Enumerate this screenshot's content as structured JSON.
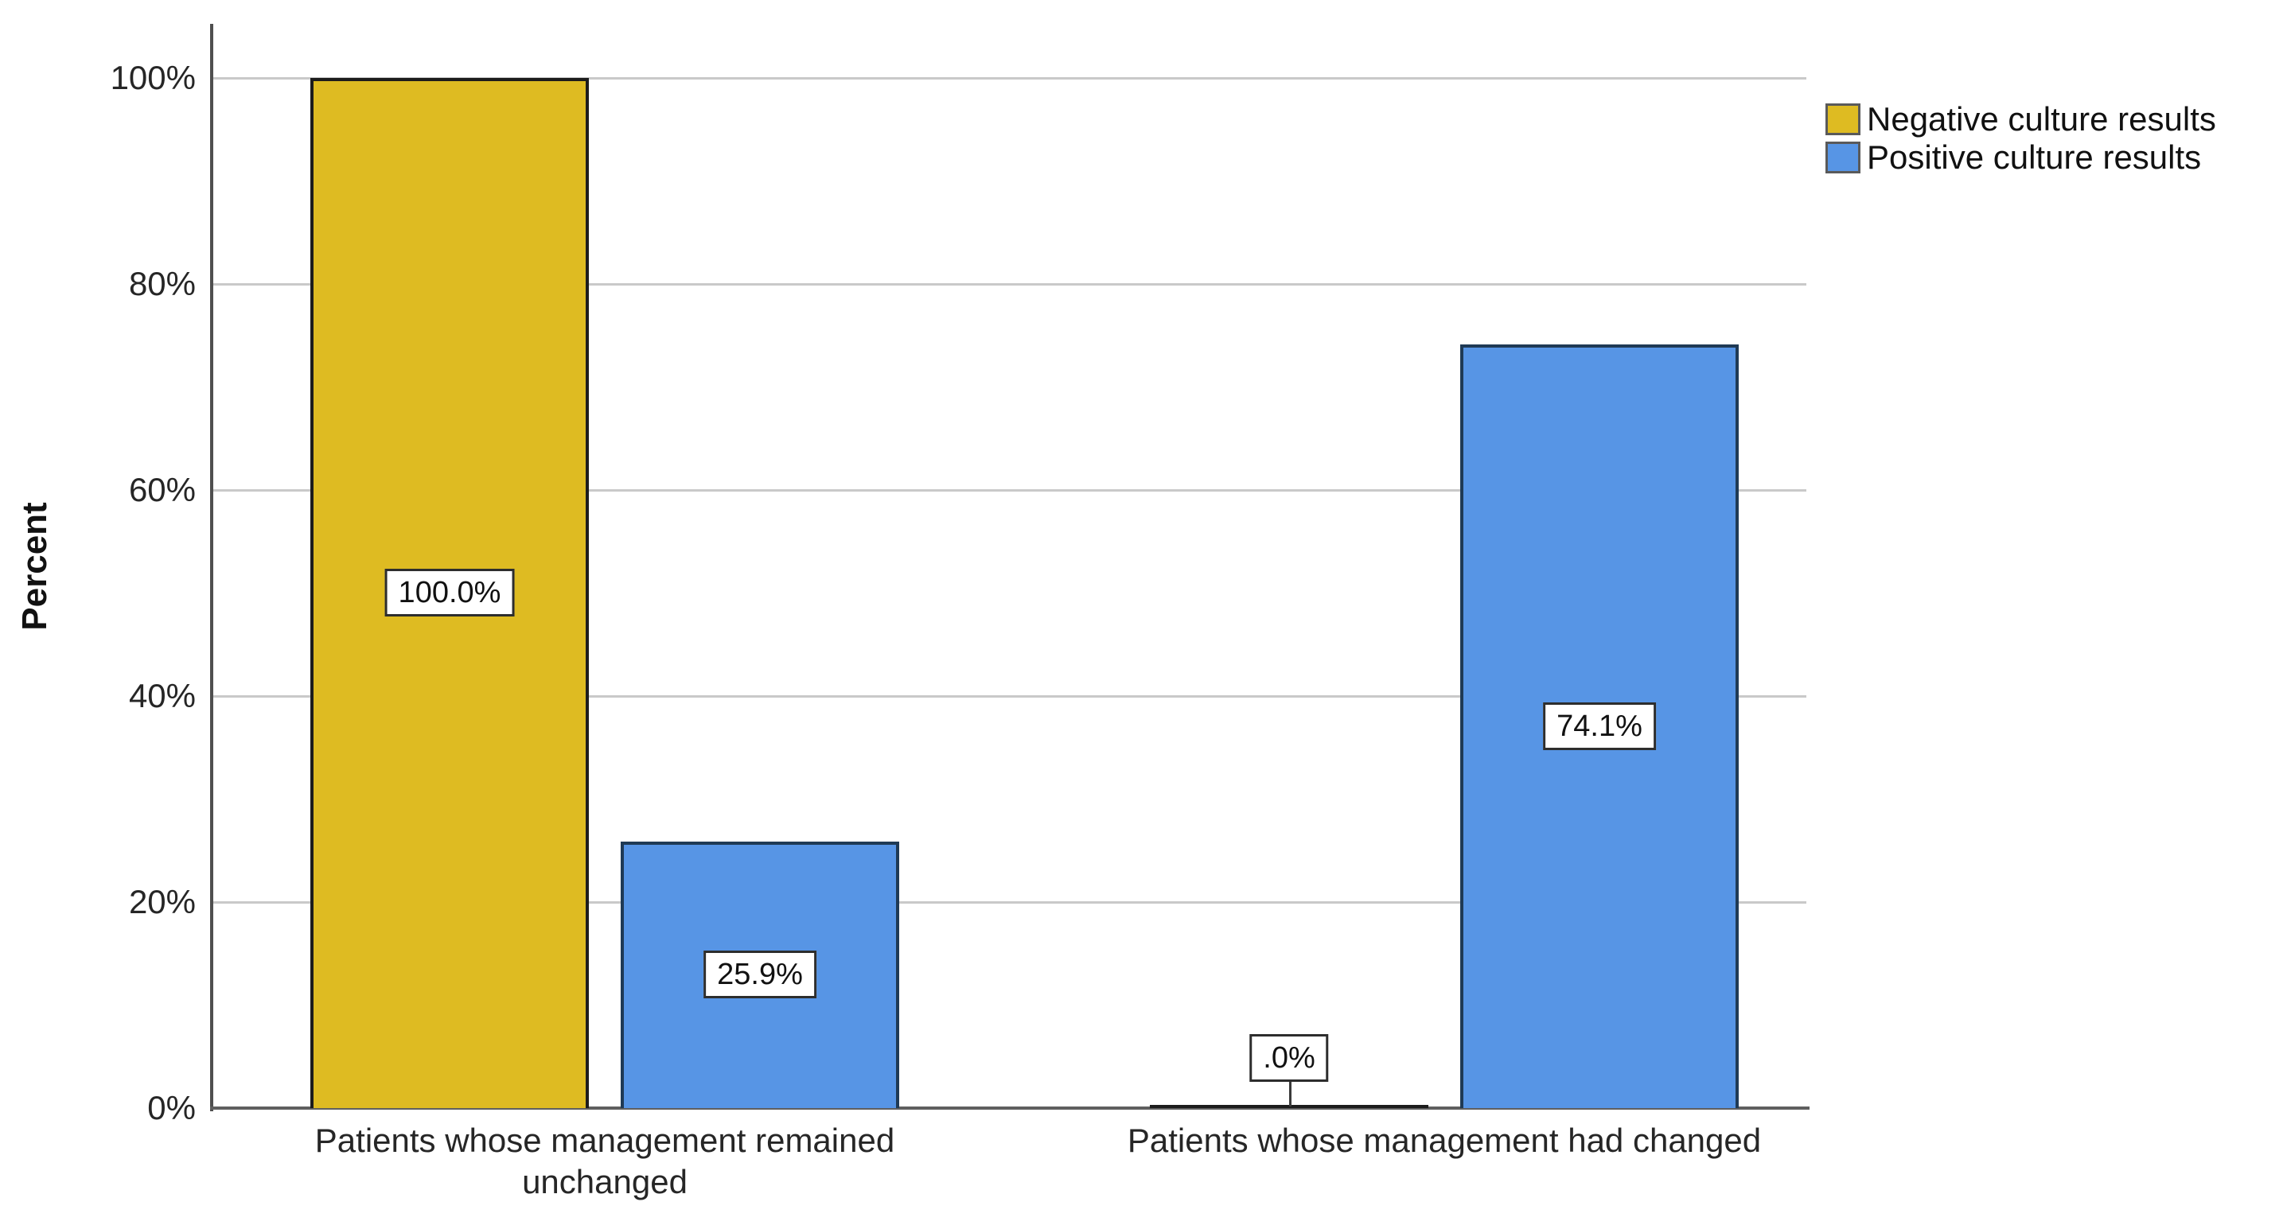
{
  "chart_data": {
    "type": "bar",
    "title": "",
    "xlabel": "",
    "ylabel": "Percent",
    "categories": [
      "Patients whose management remained unchanged",
      "Patients whose management had changed"
    ],
    "series": [
      {
        "name": "Negative culture results",
        "color": "#DEBB22",
        "values": [
          100.0,
          0.0
        ],
        "value_labels": [
          "100.0%",
          ".0%"
        ]
      },
      {
        "name": "Positive culture results",
        "color": "#5795E5",
        "values": [
          25.9,
          74.1
        ],
        "value_labels": [
          "25.9%",
          "74.1%"
        ]
      }
    ],
    "y_ticks": [
      "0%",
      "20%",
      "40%",
      "60%",
      "80%",
      "100%"
    ],
    "ylim": [
      0,
      100
    ],
    "grid": true,
    "gridline_color": "#c9c9c9",
    "legend_position": "top-right"
  }
}
